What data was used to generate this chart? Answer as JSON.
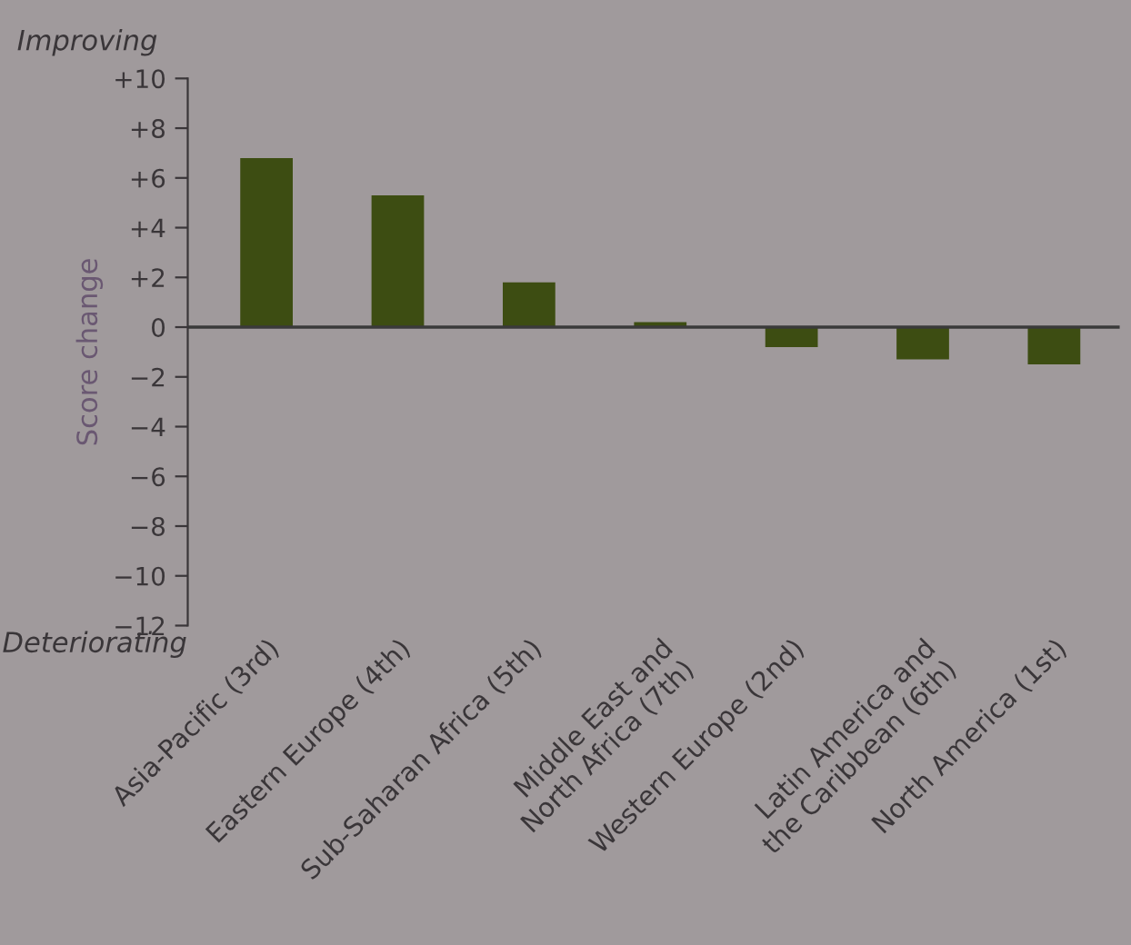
{
  "chart_data": {
    "type": "bar",
    "ylabel": "Score change",
    "categories": [
      "Asia-Pacific (3rd)",
      "Eastern Europe (4th)",
      "Sub-Saharan Africa (5th)",
      "Middle East and\nNorth Africa (7th)",
      "Western Europe (2nd)",
      "Latin America and\nthe Caribbean (6th)",
      "North America (1st)"
    ],
    "values": [
      6.8,
      5.3,
      1.8,
      0.2,
      -0.8,
      -1.3,
      -1.5
    ],
    "color": "#3d4d12",
    "ylim": [
      -12,
      10
    ],
    "yticks": [
      {
        "value": 10,
        "label": "+10"
      },
      {
        "value": 8,
        "label": "+8"
      },
      {
        "value": 6,
        "label": "+6"
      },
      {
        "value": 4,
        "label": "+4"
      },
      {
        "value": 2,
        "label": "+2"
      },
      0,
      {
        "value": -2,
        "label": "−2"
      },
      {
        "value": -4,
        "label": "−4"
      },
      {
        "value": -6,
        "label": "−6"
      },
      {
        "value": -8,
        "label": "−8"
      },
      {
        "value": -10,
        "label": "−10"
      },
      {
        "value": -12,
        "label": "−12"
      }
    ],
    "ref_lines": [
      {
        "axis": "y",
        "value": 0,
        "color": "#3a3a3a"
      }
    ],
    "annotations": [
      "Improving",
      "Deteriorating"
    ],
    "grid": false,
    "legend": false
  }
}
